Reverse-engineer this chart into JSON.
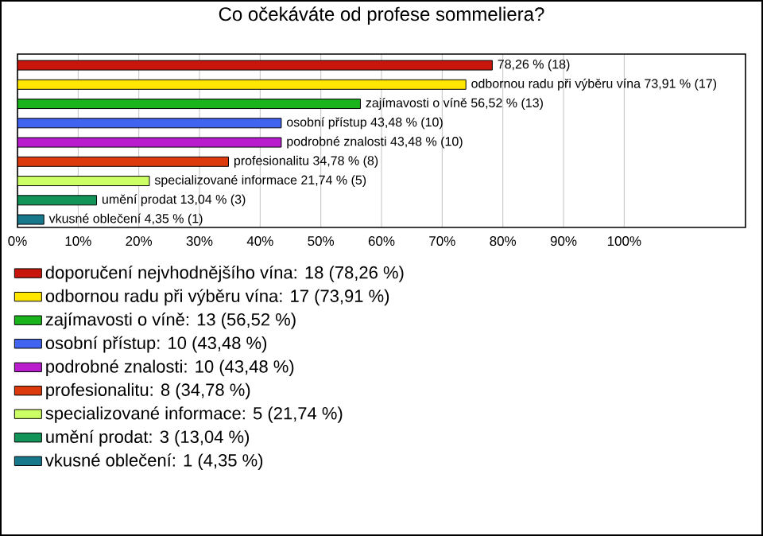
{
  "chart_data": {
    "type": "bar",
    "orientation": "horizontal",
    "title": "Co očekáváte od profese sommeliera?",
    "categories": [
      null,
      null,
      null,
      null,
      null,
      null,
      null,
      null,
      null
    ],
    "series": [
      {
        "name": "doporučení nejvhodnějšího vína: 18 (78,26 %)",
        "color": "#c8160c",
        "values": [
          78.26,
          null,
          null,
          null,
          null,
          null,
          null,
          null,
          null
        ],
        "value_labels": [
          "78,26 % (18)",
          null,
          null,
          null,
          null,
          null,
          null,
          null,
          null
        ]
      },
      {
        "name": "odbornou radu při výběru vína: 17 (73,91 %)",
        "color": "#ffe600",
        "values": [
          null,
          73.91,
          null,
          null,
          null,
          null,
          null,
          null,
          null
        ],
        "value_labels": [
          null,
          "odbornou radu při výběru vína 73,91 % (17)",
          null,
          null,
          null,
          null,
          null,
          null,
          null
        ]
      },
      {
        "name": "zajímavosti o víně: 13 (56,52 %)",
        "color": "#1cb41c",
        "values": [
          null,
          null,
          56.52,
          null,
          null,
          null,
          null,
          null,
          null
        ],
        "value_labels": [
          null,
          null,
          "zajímavosti o víně 56,52 % (13)",
          null,
          null,
          null,
          null,
          null,
          null
        ]
      },
      {
        "name": "osobní přístup: 10 (43,48 %)",
        "color": "#4064f0",
        "values": [
          null,
          null,
          null,
          43.48,
          null,
          null,
          null,
          null,
          null
        ],
        "value_labels": [
          null,
          null,
          null,
          "osobní přístup 43,48 % (10)",
          null,
          null,
          null,
          null,
          null
        ]
      },
      {
        "name": "podrobné znalosti: 10 (43,48 %)",
        "color": "#b81ccc",
        "values": [
          null,
          null,
          null,
          null,
          43.48,
          null,
          null,
          null,
          null
        ],
        "value_labels": [
          null,
          null,
          null,
          null,
          "podrobné znalosti 43,48 % (10)",
          null,
          null,
          null,
          null
        ]
      },
      {
        "name": "profesionalitu: 8 (34,78 %)",
        "color": "#dc3a0c",
        "values": [
          null,
          null,
          null,
          null,
          null,
          34.78,
          null,
          null,
          null
        ],
        "value_labels": [
          null,
          null,
          null,
          null,
          null,
          "profesionalitu 34,78 % (8)",
          null,
          null,
          null
        ]
      },
      {
        "name": "specializované informace: 5 (21,74 %)",
        "color": "#ccff66",
        "values": [
          null,
          null,
          null,
          null,
          null,
          null,
          21.74,
          null,
          null
        ],
        "value_labels": [
          null,
          null,
          null,
          null,
          null,
          null,
          "specializované informace 21,74 % (5)",
          null,
          null
        ]
      },
      {
        "name": "umění prodat: 3 (13,04 %)",
        "color": "#129458",
        "values": [
          null,
          null,
          null,
          null,
          null,
          null,
          null,
          13.04,
          null
        ],
        "value_labels": [
          null,
          null,
          null,
          null,
          null,
          null,
          null,
          "umění prodat 13,04 % (3)",
          null
        ]
      },
      {
        "name": "vkusné oblečení: 1 (4,35 %)",
        "color": "#17788c",
        "values": [
          null,
          null,
          null,
          null,
          null,
          null,
          null,
          null,
          4.35
        ],
        "value_labels": [
          null,
          null,
          null,
          null,
          null,
          null,
          null,
          null,
          "vkusné oblečení 4,35 % (1)"
        ]
      }
    ],
    "xlim": [
      0,
      120
    ],
    "xticks": [
      {
        "value": 0,
        "label": "0%"
      },
      {
        "value": 10,
        "label": "10%"
      },
      {
        "value": 20,
        "label": "20%"
      },
      {
        "value": 30,
        "label": "30%"
      },
      {
        "value": 40,
        "label": "40%"
      },
      {
        "value": 50,
        "label": "50%"
      },
      {
        "value": 60,
        "label": "60%"
      },
      {
        "value": 70,
        "label": "70%"
      },
      {
        "value": 80,
        "label": "80%"
      },
      {
        "value": 90,
        "label": "90%"
      },
      {
        "value": 100,
        "label": "100%"
      }
    ],
    "grid": "x",
    "legend": "bottom",
    "tick_labels": "x"
  }
}
